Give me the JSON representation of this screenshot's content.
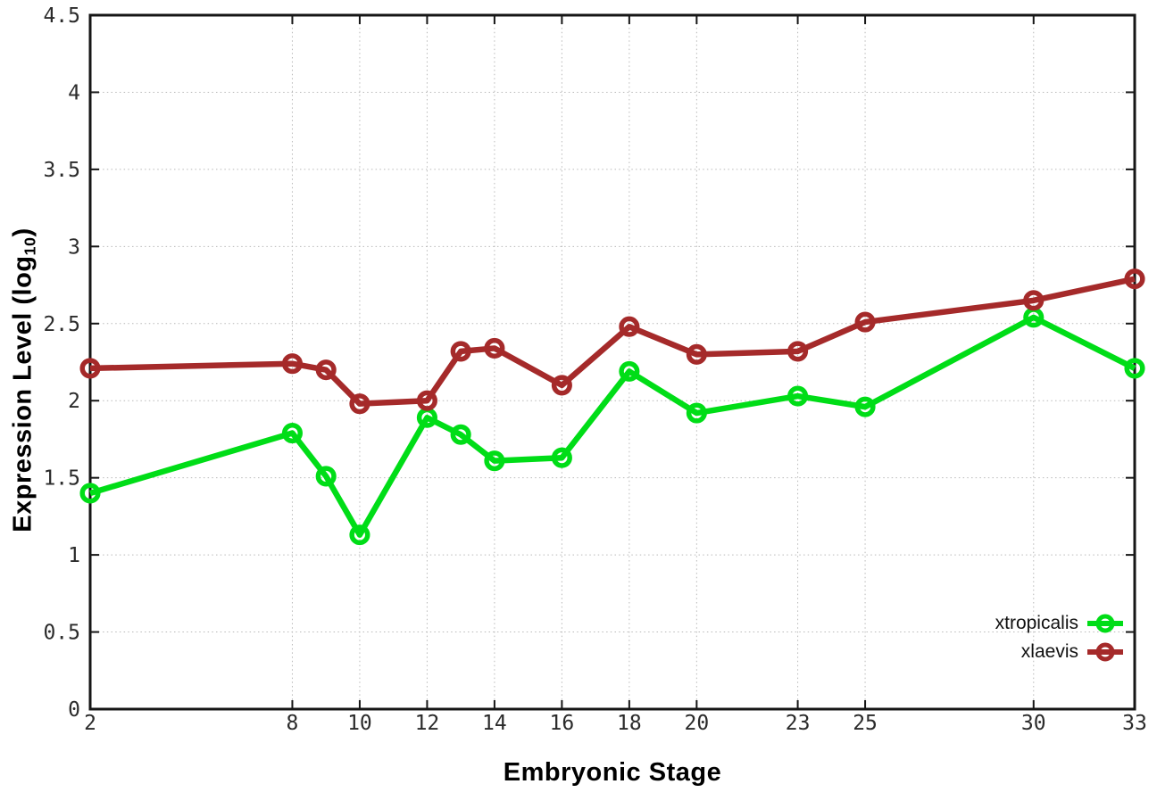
{
  "figure": {
    "background": "#ffffff"
  },
  "chart_data": {
    "type": "line",
    "title": "",
    "xlabel": "Embryonic Stage",
    "ylabel": "Expression Level (log10)",
    "ylabel_parts": {
      "main": "Expression Level (log",
      "sub": "10",
      "close": ")"
    },
    "xlim": [
      2,
      33
    ],
    "ylim": [
      0,
      4.5
    ],
    "x_ticks": [
      2,
      8,
      10,
      12,
      14,
      16,
      18,
      20,
      23,
      25,
      30,
      33
    ],
    "y_ticks": [
      0,
      0.5,
      1,
      1.5,
      2,
      2.5,
      3,
      3.5,
      4,
      4.5
    ],
    "grid": true,
    "grid_style": "dotted",
    "legend": {
      "position": "inside-bottom-right"
    },
    "x": [
      2,
      8,
      9,
      10,
      12,
      13,
      14,
      16,
      18,
      20,
      23,
      25,
      30,
      33
    ],
    "series": [
      {
        "name": "xtropicalis",
        "color": "#00dd17",
        "marker": "open-circle",
        "values": [
          1.4,
          1.79,
          1.51,
          1.13,
          1.89,
          1.78,
          1.61,
          1.63,
          2.19,
          1.92,
          2.03,
          1.96,
          2.54,
          2.21
        ]
      },
      {
        "name": "xlaevis",
        "color": "#a52a2a",
        "marker": "open-circle",
        "values": [
          2.21,
          2.24,
          2.2,
          1.98,
          2.0,
          2.32,
          2.34,
          2.1,
          2.48,
          2.3,
          2.32,
          2.51,
          2.65,
          2.79
        ]
      }
    ]
  }
}
